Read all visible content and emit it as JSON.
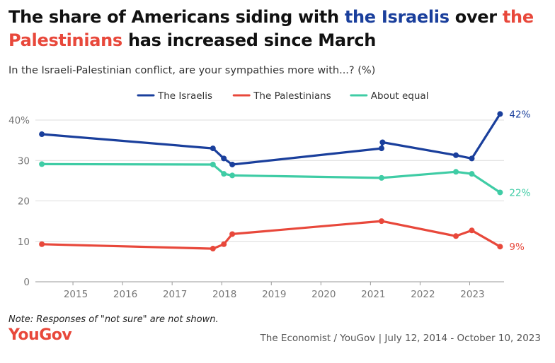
{
  "title": {
    "part1": "The share of Americans siding with ",
    "part2": "the Israelis",
    "part3": " over ",
    "part4": "the Palestinians",
    "part5": " has increased since March"
  },
  "subtitle": "In the Israeli-Palestinian conflict, are your sympathies more with...? (%)",
  "note": "Note: Responses of \"not sure\" are not shown.",
  "logo": "YouGov",
  "source": "The Economist / YouGov | July 12, 2014 - October 10, 2023",
  "colors": {
    "israelis": "#1a3f9c",
    "palestinians": "#e8483b",
    "equal": "#3fcca5",
    "logo": "#e8483b"
  },
  "chart_data": {
    "type": "line",
    "ylim": [
      0,
      42
    ],
    "xlim": [
      2014.4,
      2023.85
    ],
    "y_ticks": [
      "0",
      "10",
      "20",
      "30",
      "40%"
    ],
    "x_ticks": [
      "2015",
      "2016",
      "2017",
      "2018",
      "2019",
      "2020",
      "2021",
      "2022",
      "2023"
    ],
    "legend_position": "top-center",
    "grid": true,
    "series": [
      {
        "name": "The Israelis",
        "color": "#1a3f9c",
        "end_label": "42%",
        "points": [
          [
            2014.53,
            36.5
          ],
          [
            2017.98,
            33
          ],
          [
            2018.2,
            30.5
          ],
          [
            2018.37,
            29
          ],
          [
            2021.38,
            33
          ],
          [
            2021.4,
            34.5
          ],
          [
            2022.88,
            31.3
          ],
          [
            2023.2,
            30.5
          ],
          [
            2023.77,
            41.5
          ]
        ]
      },
      {
        "name": "The Palestinians",
        "color": "#e8483b",
        "end_label": "9%",
        "points": [
          [
            2014.53,
            9.3
          ],
          [
            2017.98,
            8.2
          ],
          [
            2018.2,
            9.3
          ],
          [
            2018.37,
            11.8
          ],
          [
            2021.38,
            15
          ],
          [
            2022.88,
            11.3
          ],
          [
            2023.2,
            12.7
          ],
          [
            2023.77,
            8.7
          ]
        ]
      },
      {
        "name": "About equal",
        "color": "#3fcca5",
        "end_label": "22%",
        "points": [
          [
            2014.53,
            29.1
          ],
          [
            2017.98,
            29
          ],
          [
            2018.2,
            26.7
          ],
          [
            2018.37,
            26.3
          ],
          [
            2021.38,
            25.7
          ],
          [
            2022.88,
            27.2
          ],
          [
            2023.2,
            26.7
          ],
          [
            2023.77,
            22.1
          ]
        ]
      }
    ]
  }
}
